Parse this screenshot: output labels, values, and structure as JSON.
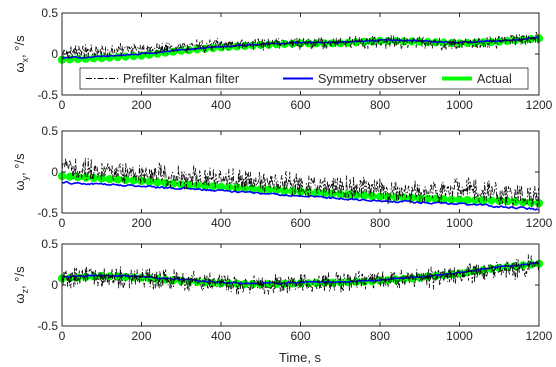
{
  "chart_data": [
    {
      "type": "line",
      "ylabel": "ω_x, °/s",
      "ylabel_parts": [
        "ω",
        "x",
        ", °/s"
      ],
      "xlim": [
        0,
        1200
      ],
      "ylim": [
        -0.5,
        0.5
      ],
      "xticks": [
        0,
        200,
        400,
        600,
        800,
        1000,
        1200
      ],
      "yticks": [
        -0.5,
        0,
        0.5
      ],
      "ytick_labels": [
        "-0.5",
        "0",
        "0.5"
      ],
      "grid": false,
      "legend": {
        "placement": "bottom",
        "entries": [
          "Prefilter Kalman filter",
          "Symmetry observer",
          "Actual"
        ]
      },
      "series": [
        {
          "name": "Prefilter Kalman filter",
          "style": "dash-dot",
          "color": "#000000",
          "noise": 0.06,
          "x": [
            0,
            100,
            200,
            300,
            400,
            500,
            600,
            700,
            800,
            900,
            1000,
            1100,
            1200
          ],
          "values": [
            0.03,
            0.03,
            0.06,
            0.09,
            0.11,
            0.12,
            0.13,
            0.13,
            0.15,
            0.14,
            0.12,
            0.15,
            0.2
          ]
        },
        {
          "name": "Symmetry observer",
          "style": "solid",
          "color": "#0000ff",
          "noise": 0.006,
          "x": [
            0,
            100,
            200,
            300,
            400,
            500,
            600,
            700,
            800,
            900,
            1000,
            1100,
            1200
          ],
          "values": [
            -0.05,
            -0.03,
            0.0,
            0.05,
            0.09,
            0.12,
            0.14,
            0.14,
            0.17,
            0.16,
            0.14,
            0.16,
            0.2
          ]
        },
        {
          "name": "Actual",
          "style": "solid-markers",
          "color": "#00ff00",
          "noise": 0.004,
          "x": [
            0,
            100,
            200,
            300,
            400,
            500,
            600,
            700,
            800,
            900,
            1000,
            1100,
            1200
          ],
          "values": [
            -0.07,
            -0.05,
            -0.02,
            0.04,
            0.08,
            0.11,
            0.13,
            0.13,
            0.16,
            0.15,
            0.13,
            0.15,
            0.19
          ]
        }
      ]
    },
    {
      "type": "line",
      "ylabel": "ω_y, °/s",
      "ylabel_parts": [
        "ω",
        "y",
        ", °/s"
      ],
      "xlim": [
        0,
        1200
      ],
      "ylim": [
        -0.5,
        0.5
      ],
      "xticks": [
        0,
        200,
        400,
        600,
        800,
        1000,
        1200
      ],
      "yticks": [
        -0.5,
        0,
        0.5
      ],
      "ytick_labels": [
        "-0.5",
        "0",
        "0.5"
      ],
      "grid": false,
      "series": [
        {
          "name": "Prefilter Kalman filter",
          "style": "dash-dot",
          "color": "#000000",
          "noise": 0.11,
          "x": [
            0,
            100,
            200,
            300,
            400,
            500,
            600,
            700,
            800,
            900,
            1000,
            1100,
            1200
          ],
          "values": [
            0.05,
            0.02,
            -0.02,
            -0.05,
            -0.09,
            -0.12,
            -0.15,
            -0.18,
            -0.22,
            -0.26,
            -0.2,
            -0.26,
            -0.3
          ]
        },
        {
          "name": "Symmetry observer",
          "style": "solid",
          "color": "#0000ff",
          "noise": 0.01,
          "x": [
            0,
            100,
            200,
            300,
            400,
            500,
            600,
            700,
            800,
            900,
            1000,
            1100,
            1200
          ],
          "values": [
            -0.13,
            -0.15,
            -0.17,
            -0.2,
            -0.23,
            -0.26,
            -0.29,
            -0.32,
            -0.35,
            -0.37,
            -0.39,
            -0.42,
            -0.46
          ]
        },
        {
          "name": "Actual",
          "style": "solid-markers",
          "color": "#00ff00",
          "noise": 0.005,
          "x": [
            0,
            100,
            200,
            300,
            400,
            500,
            600,
            700,
            800,
            900,
            1000,
            1100,
            1200
          ],
          "values": [
            -0.05,
            -0.08,
            -0.11,
            -0.15,
            -0.18,
            -0.21,
            -0.24,
            -0.27,
            -0.3,
            -0.32,
            -0.34,
            -0.35,
            -0.38
          ]
        }
      ]
    },
    {
      "type": "line",
      "ylabel": "ω_z, °/s",
      "ylabel_parts": [
        "ω",
        "z",
        ", °/s"
      ],
      "xlabel": "Time, s",
      "xlim": [
        0,
        1200
      ],
      "ylim": [
        -0.5,
        0.5
      ],
      "xticks": [
        0,
        200,
        400,
        600,
        800,
        1000,
        1200
      ],
      "yticks": [
        -0.5,
        0,
        0.5
      ],
      "ytick_labels": [
        "-0.5",
        "0",
        "0.5"
      ],
      "grid": false,
      "series": [
        {
          "name": "Prefilter Kalman filter",
          "style": "dash-dot",
          "color": "#000000",
          "noise": 0.1,
          "x": [
            0,
            100,
            200,
            300,
            400,
            500,
            600,
            700,
            800,
            900,
            1000,
            1100,
            1200
          ],
          "values": [
            0.08,
            0.09,
            0.08,
            0.05,
            0.02,
            0.01,
            0.02,
            0.03,
            0.05,
            0.08,
            0.12,
            0.18,
            0.24
          ]
        },
        {
          "name": "Symmetry observer",
          "style": "solid",
          "color": "#0000ff",
          "noise": 0.006,
          "x": [
            0,
            100,
            200,
            300,
            400,
            500,
            600,
            700,
            800,
            900,
            1000,
            1100,
            1200
          ],
          "values": [
            0.1,
            0.12,
            0.1,
            0.07,
            0.03,
            0.02,
            0.03,
            0.04,
            0.06,
            0.1,
            0.15,
            0.22,
            0.27
          ]
        },
        {
          "name": "Actual",
          "style": "solid-markers",
          "color": "#00ff00",
          "noise": 0.004,
          "x": [
            0,
            100,
            200,
            300,
            400,
            500,
            600,
            700,
            800,
            900,
            1000,
            1100,
            1200
          ],
          "values": [
            0.08,
            0.11,
            0.09,
            0.05,
            0.02,
            0.01,
            0.02,
            0.03,
            0.05,
            0.09,
            0.14,
            0.21,
            0.26
          ]
        }
      ]
    }
  ]
}
